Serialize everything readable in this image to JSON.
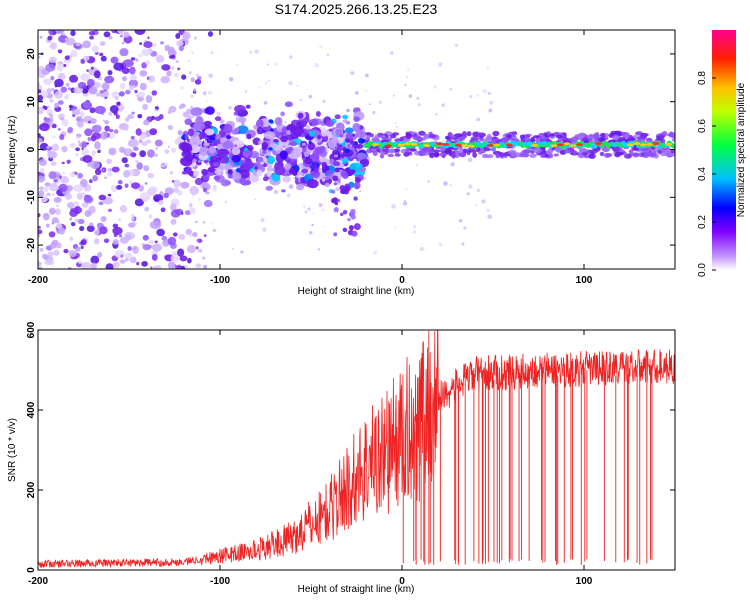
{
  "title": "S174.2025.266.13.25.E23",
  "chart_data": [
    {
      "type": "heatmap",
      "name": "spectrogram",
      "xlabel": "Height of straight line (km)",
      "ylabel": "Frequency (Hz)",
      "xlim": [
        -200,
        150
      ],
      "ylim": [
        -25,
        25
      ],
      "xticks": [
        "-200",
        "-100",
        "0",
        "100"
      ],
      "xtick_values": [
        -200,
        -100,
        0,
        100
      ],
      "yticks": [
        "20",
        "10",
        "0",
        "-10",
        "-20"
      ],
      "ytick_values": [
        20,
        10,
        0,
        -10,
        -20
      ],
      "description_bands": [
        {
          "x_from": -200,
          "x_to": -120,
          "pattern": "scattered noise",
          "freq_spread": 25
        },
        {
          "x_from": -120,
          "x_to": -20,
          "pattern": "dense blob cluster",
          "freq_center": 0,
          "freq_spread": 8
        },
        {
          "x_from": -20,
          "x_to": 150,
          "pattern": "narrow line",
          "freq_center": 1,
          "freq_spread": 1
        }
      ],
      "colorbar": {
        "label": "Normalized spectral amplitude",
        "range": [
          0,
          1
        ],
        "ticks": [
          "0.0",
          "0.2",
          "0.4",
          "0.6",
          "0.8"
        ],
        "tick_values": [
          0.0,
          0.2,
          0.4,
          0.6,
          0.8
        ],
        "colors": [
          "#ffffff",
          "#8000ff",
          "#0000ff",
          "#00c0ff",
          "#00ff00",
          "#ffff00",
          "#ff8000",
          "#ff0000",
          "#ff0080"
        ]
      }
    },
    {
      "type": "line",
      "name": "snr",
      "xlabel": "Height of straight line (km)",
      "ylabel": "SNR (10 * v/v)",
      "xlim": [
        -200,
        150
      ],
      "ylim": [
        0,
        600
      ],
      "xticks": [
        "-200",
        "-100",
        "0",
        "100"
      ],
      "xtick_values": [
        -200,
        -100,
        0,
        100
      ],
      "yticks": [
        "600",
        "400",
        "200",
        "0"
      ],
      "ytick_values": [
        600,
        400,
        200,
        0
      ],
      "color": "#ee2222",
      "profile": [
        {
          "x": -200,
          "y": 15
        },
        {
          "x": -120,
          "y": 20
        },
        {
          "x": -100,
          "y": 35
        },
        {
          "x": -80,
          "y": 50
        },
        {
          "x": -60,
          "y": 80
        },
        {
          "x": -40,
          "y": 150
        },
        {
          "x": -20,
          "y": 260
        },
        {
          "x": 0,
          "y": 330
        },
        {
          "x": 20,
          "y": 430
        },
        {
          "x": 40,
          "y": 490
        },
        {
          "x": 80,
          "y": 500
        },
        {
          "x": 150,
          "y": 510
        }
      ]
    }
  ]
}
